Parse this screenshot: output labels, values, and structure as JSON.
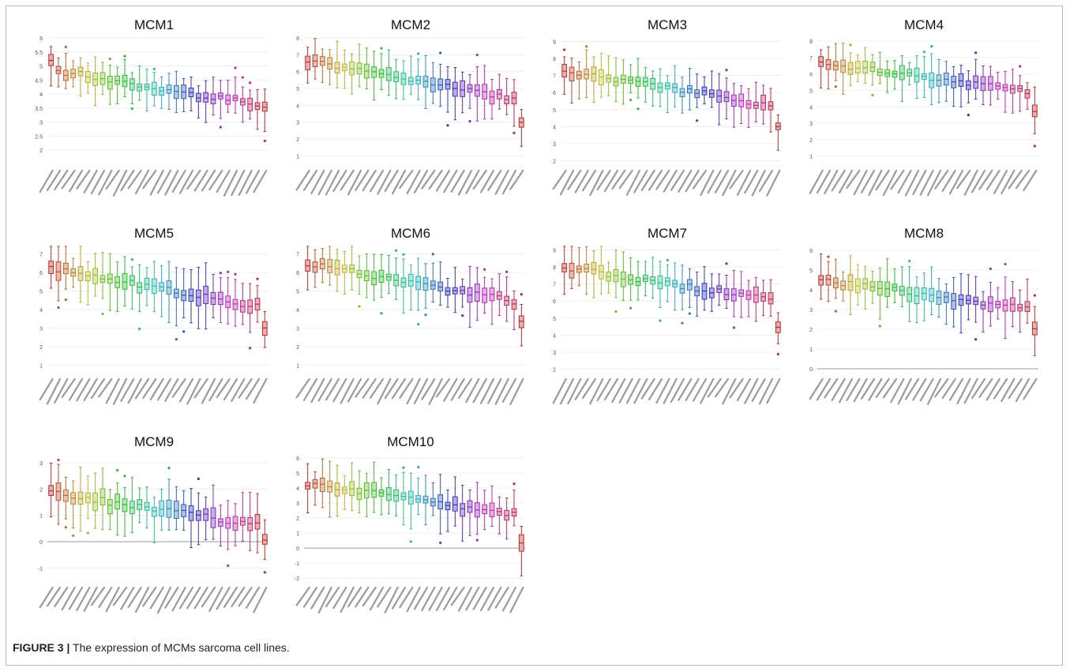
{
  "caption": {
    "label": "FIGURE 3 |",
    "text": "The expression of MCMs sarcoma cell lines."
  },
  "chart_data": [
    {
      "type": "box",
      "title": "MCM1",
      "ylim": [
        1.5,
        6
      ],
      "yticks": [
        2,
        2.5,
        3,
        3.5,
        4,
        4.5,
        5,
        5.5,
        6
      ],
      "zero_line": false,
      "start": 4.85,
      "end": 3.6,
      "jitter": 0.25,
      "spread": 0.55,
      "first_boost": 0.25,
      "end_drop": 0
    },
    {
      "type": "box",
      "title": "MCM2",
      "ylim": [
        0.5,
        8
      ],
      "yticks": [
        1,
        2,
        3,
        4,
        5,
        6,
        7,
        8
      ],
      "zero_line": false,
      "start": 6.7,
      "end": 4.3,
      "jitter": 0.35,
      "spread": 1.1,
      "first_boost": 0.0,
      "end_drop": 1.4
    },
    {
      "type": "box",
      "title": "MCM3",
      "ylim": [
        1.8,
        9.2
      ],
      "yticks": [
        2,
        3,
        4,
        5,
        6,
        7,
        8,
        9
      ],
      "zero_line": false,
      "start": 7.3,
      "end": 5.2,
      "jitter": 0.35,
      "spread": 1.0,
      "first_boost": 0.0,
      "end_drop": 1.1
    },
    {
      "type": "box",
      "title": "MCM4",
      "ylim": [
        0.5,
        8.2
      ],
      "yticks": [
        1,
        2,
        3,
        4,
        5,
        6,
        7,
        8
      ],
      "zero_line": false,
      "start": 6.7,
      "end": 4.9,
      "jitter": 0.35,
      "spread": 1.0,
      "first_boost": 0.0,
      "end_drop": 1.3
    },
    {
      "type": "box",
      "title": "MCM5",
      "ylim": [
        0.6,
        7.4
      ],
      "yticks": [
        1,
        2,
        3,
        4,
        5,
        6,
        7
      ],
      "zero_line": false,
      "start": 6.2,
      "end": 4.1,
      "jitter": 0.35,
      "spread": 1.1,
      "first_boost": 0.0,
      "end_drop": 1.1
    },
    {
      "type": "box",
      "title": "MCM6",
      "ylim": [
        0.6,
        7.4
      ],
      "yticks": [
        1,
        2,
        3,
        4,
        5,
        6,
        7
      ],
      "zero_line": false,
      "start": 6.5,
      "end": 4.4,
      "jitter": 0.35,
      "spread": 1.0,
      "first_boost": 0.0,
      "end_drop": 0.9
    },
    {
      "type": "box",
      "title": "MCM7",
      "ylim": [
        1.8,
        9.2
      ],
      "yticks": [
        2,
        3,
        4,
        5,
        6,
        7,
        8,
        9
      ],
      "zero_line": false,
      "start": 8.0,
      "end": 6.0,
      "jitter": 0.35,
      "spread": 1.0,
      "first_boost": 0.0,
      "end_drop": 1.7
    },
    {
      "type": "box",
      "title": "MCM8",
      "ylim": [
        -0.2,
        6.2
      ],
      "yticks": [
        0,
        1,
        2,
        3,
        4,
        5,
        6
      ],
      "zero_line": true,
      "start": 4.5,
      "end": 3.0,
      "jitter": 0.3,
      "spread": 1.0,
      "first_boost": 0.0,
      "end_drop": 1.1
    },
    {
      "type": "box",
      "title": "MCM9",
      "ylim": [
        -1.5,
        3.3
      ],
      "yticks": [
        -1,
        0,
        1,
        2,
        3
      ],
      "zero_line": true,
      "start": 1.85,
      "end": 0.6,
      "jitter": 0.3,
      "spread": 0.8,
      "first_boost": 0.0,
      "end_drop": 0.55
    },
    {
      "type": "box",
      "title": "MCM10",
      "ylim": [
        -2.2,
        6.2
      ],
      "yticks": [
        -2,
        -1,
        0,
        1,
        2,
        3,
        4,
        5,
        6
      ],
      "zero_line": true,
      "start": 4.3,
      "end": 2.2,
      "jitter": 0.35,
      "spread": 1.2,
      "first_boost": 0.0,
      "end_drop": 1.7
    }
  ]
}
